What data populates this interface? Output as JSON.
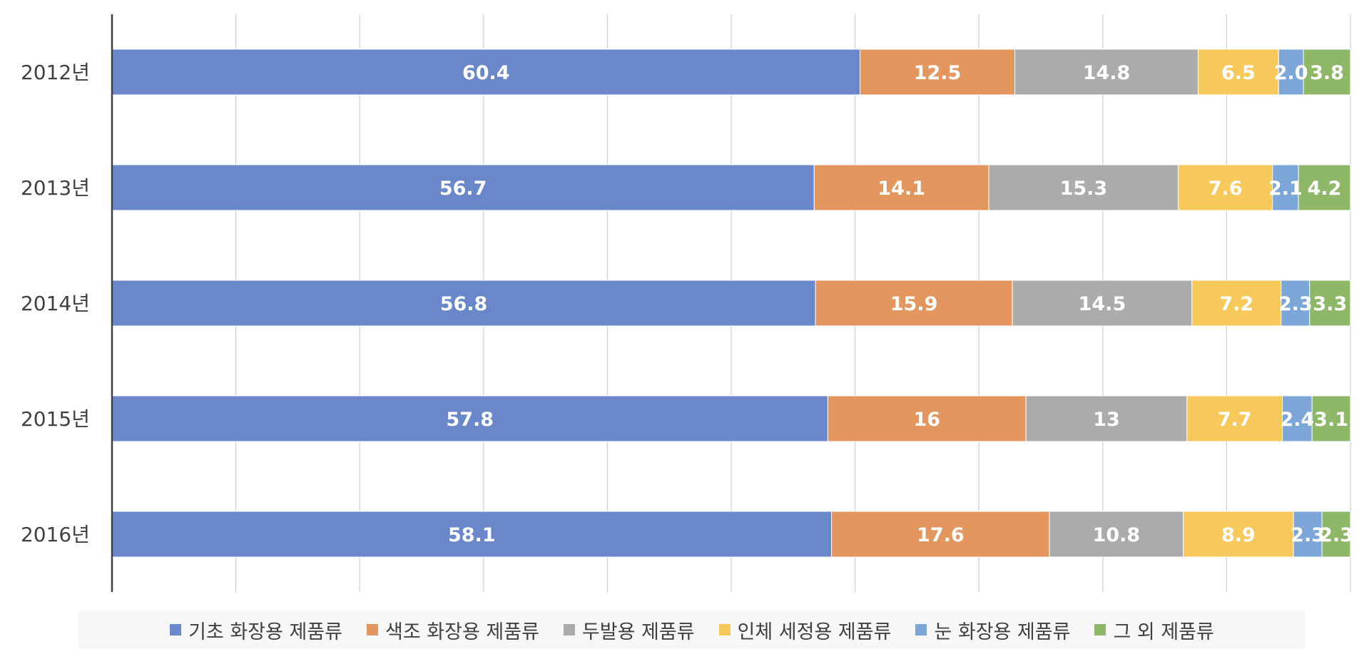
{
  "chart_data": {
    "type": "bar",
    "orientation": "horizontal",
    "stacked": true,
    "categories": [
      "2012년",
      "2013년",
      "2014년",
      "2015년",
      "2016년"
    ],
    "series": [
      {
        "name": "기초 화장용 제품류",
        "color": "#6a88c9",
        "values": [
          60.4,
          56.7,
          56.8,
          57.8,
          58.1
        ],
        "labels": [
          "60.4",
          "56.7",
          "56.8",
          "57.8",
          "58.1"
        ]
      },
      {
        "name": "색조 화장용 제품류",
        "color": "#e4965f",
        "values": [
          12.5,
          14.1,
          15.9,
          16,
          17.6
        ],
        "labels": [
          "12.5",
          "14.1",
          "15.9",
          "16",
          "17.6"
        ]
      },
      {
        "name": "두발용 제품류",
        "color": "#ababab",
        "values": [
          14.8,
          15.3,
          14.5,
          13,
          10.8
        ],
        "labels": [
          "14.8",
          "15.3",
          "14.5",
          "13",
          "10.8"
        ]
      },
      {
        "name": "인체 세정용 제품류",
        "color": "#f6c95a",
        "values": [
          6.5,
          7.6,
          7.2,
          7.7,
          8.9
        ],
        "labels": [
          "6.5",
          "7.6",
          "7.2",
          "7.7",
          "8.9"
        ]
      },
      {
        "name": "눈 화장용 제품류",
        "color": "#7da6d8",
        "values": [
          2.0,
          2.1,
          2.3,
          2.4,
          2.3
        ],
        "labels": [
          "2.0",
          "2.1",
          "2.3",
          "2.4",
          "2.3"
        ]
      },
      {
        "name": "그 외 제품류",
        "color": "#8fb768",
        "values": [
          3.8,
          4.2,
          3.3,
          3.1,
          2.3
        ],
        "labels": [
          "3.8",
          "4.2",
          "3.3",
          "3.1",
          "2.3"
        ]
      }
    ],
    "xlim": [
      0,
      100
    ],
    "grid": true,
    "legend": "bottom",
    "label_color": "#ffffff",
    "tick_label_color": "#404040",
    "gridline_color": "#cfcfcf",
    "axis_line_color": "#404040"
  }
}
